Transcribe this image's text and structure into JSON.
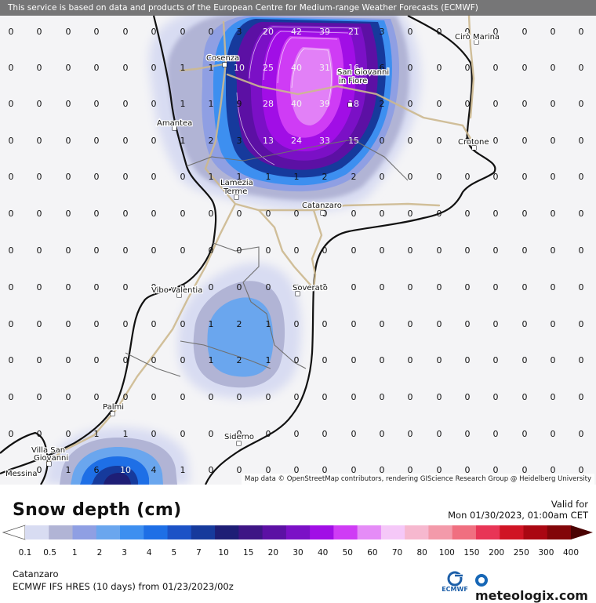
{
  "banner": "This service is based on data and products of the European Centre for Medium-range Weather Forecasts (ECMWF)",
  "attribution": "Map data © OpenStreetMap contributors, rendering GIScience Research Group @ Heidelberg University",
  "title": "Snow depth (cm)",
  "valid_label": "Valid for",
  "valid_time": "Mon 01/30/2023, 01:00am CET",
  "location": "Catanzaro",
  "model": "ECMWF IFS HRES (10 days) from 01/23/2023/00z",
  "ecmwf_logo_text": "ECMWF",
  "brand": "meteologix.com",
  "legend": {
    "labels": [
      "0.1",
      "0.5",
      "1",
      "2",
      "3",
      "4",
      "5",
      "7",
      "10",
      "15",
      "20",
      "30",
      "40",
      "50",
      "60",
      "70",
      "80",
      "100",
      "150",
      "200",
      "250",
      "300",
      "400"
    ],
    "colors": [
      "#d8dcf2",
      "#b1b4d5",
      "#8f9fe3",
      "#6aa6ee",
      "#3d8ff0",
      "#1e6fe6",
      "#1c52c6",
      "#163a9c",
      "#1e1e76",
      "#3e1585",
      "#5c10a4",
      "#7b10c6",
      "#a10ee6",
      "#cf3cf5",
      "#e58cf7",
      "#f5c8f8",
      "#f6b8cf",
      "#f39aaa",
      "#f06f80",
      "#e83556",
      "#d01424",
      "#aa0712",
      "#820509",
      "#4a0303"
    ]
  },
  "towns": [
    {
      "name": "Cosenza"
    },
    {
      "name": "San Giovanni"
    },
    {
      "name": "in Fiore"
    },
    {
      "name": "Amantea"
    },
    {
      "name": "Cirò Marina"
    },
    {
      "name": "Crotone"
    },
    {
      "name": "Lamezia"
    },
    {
      "name": "Terme"
    },
    {
      "name": "Catanzaro"
    },
    {
      "name": "Vibo Valentia"
    },
    {
      "name": "Soverato"
    },
    {
      "name": "Palmi"
    },
    {
      "name": "Villa San"
    },
    {
      "name": "Giovanni"
    },
    {
      "name": "Siderno"
    },
    {
      "name": "Messina"
    }
  ],
  "grid": {
    "x": [
      14,
      50,
      87,
      123,
      160,
      196,
      233,
      269,
      305,
      342,
      378,
      414,
      451,
      487,
      523,
      560,
      596,
      632,
      669,
      705,
      741
    ],
    "rows": [
      {
        "y": 44,
        "v": [
          "0",
          "0",
          "0",
          "0",
          "0",
          "0",
          "0",
          "0",
          "3",
          "20",
          "42",
          "39",
          "21",
          "3",
          "0",
          "0",
          "0",
          "0",
          "0",
          "0",
          "0"
        ]
      },
      {
        "y": 90,
        "v": [
          "0",
          "0",
          "0",
          "0",
          "0",
          "0",
          "1",
          "1",
          "10",
          "25",
          "40",
          "31",
          "16",
          "6",
          "0",
          "0",
          "0",
          "0",
          "0",
          "0",
          "0"
        ]
      },
      {
        "y": 136,
        "v": [
          "0",
          "0",
          "0",
          "0",
          "0",
          "0",
          "1",
          "1",
          "9",
          "28",
          "40",
          "39",
          "18",
          "2",
          "0",
          "0",
          "0",
          "0",
          "0",
          "0",
          "0"
        ]
      },
      {
        "y": 183,
        "v": [
          "0",
          "0",
          "0",
          "0",
          "0",
          "0",
          "1",
          "2",
          "3",
          "13",
          "24",
          "33",
          "15",
          "0",
          "0",
          "0",
          "0",
          "0",
          "0",
          "0",
          "0"
        ]
      },
      {
        "y": 229,
        "v": [
          "0",
          "0",
          "0",
          "0",
          "0",
          "0",
          "0",
          "1",
          "1",
          "1",
          "1",
          "2",
          "2",
          "0",
          "0",
          "0",
          "0",
          "0",
          "0",
          "0",
          "0"
        ]
      },
      {
        "y": 276,
        "v": [
          "0",
          "0",
          "0",
          "0",
          "0",
          "0",
          "0",
          "0",
          "0",
          "0",
          "0",
          "0",
          "0",
          "0",
          "0",
          "0",
          "0",
          "0",
          "0",
          "0",
          "0"
        ]
      },
      {
        "y": 323,
        "v": [
          "0",
          "0",
          "0",
          "0",
          "0",
          "0",
          "0",
          "0",
          "0",
          "0",
          "0",
          "0",
          "0",
          "0",
          "0",
          "0",
          "0",
          "0",
          "0",
          "0",
          "0"
        ]
      },
      {
        "y": 370,
        "v": [
          "0",
          "0",
          "0",
          "0",
          "0",
          "0",
          "0",
          "0",
          "0",
          "0",
          "0",
          "0",
          "0",
          "0",
          "0",
          "0",
          "0",
          "0",
          "0",
          "0",
          "0"
        ]
      },
      {
        "y": 417,
        "v": [
          "0",
          "0",
          "0",
          "0",
          "0",
          "0",
          "0",
          "1",
          "2",
          "1",
          "0",
          "0",
          "0",
          "0",
          "0",
          "0",
          "0",
          "0",
          "0",
          "0",
          "0"
        ]
      },
      {
        "y": 463,
        "v": [
          "0",
          "0",
          "0",
          "0",
          "0",
          "0",
          "0",
          "1",
          "2",
          "1",
          "0",
          "0",
          "0",
          "0",
          "0",
          "0",
          "0",
          "0",
          "0",
          "0",
          "0"
        ]
      },
      {
        "y": 510,
        "v": [
          "0",
          "0",
          "0",
          "0",
          "0",
          "0",
          "0",
          "0",
          "0",
          "0",
          "0",
          "0",
          "0",
          "0",
          "0",
          "0",
          "0",
          "0",
          "0",
          "0",
          "0"
        ]
      },
      {
        "y": 557,
        "v": [
          "0",
          "0",
          "0",
          "1",
          "1",
          "0",
          "0",
          "0",
          "0",
          "0",
          "0",
          "0",
          "0",
          "0",
          "0",
          "0",
          "0",
          "0",
          "0",
          "0",
          "0"
        ]
      },
      {
        "y": 603,
        "v": [
          "",
          "0",
          "1",
          "6",
          "10",
          "4",
          "1",
          "0",
          "0",
          "0",
          "0",
          "0",
          "0",
          "0",
          "0",
          "0",
          "0",
          "0",
          "0",
          "0",
          "0"
        ]
      }
    ]
  }
}
